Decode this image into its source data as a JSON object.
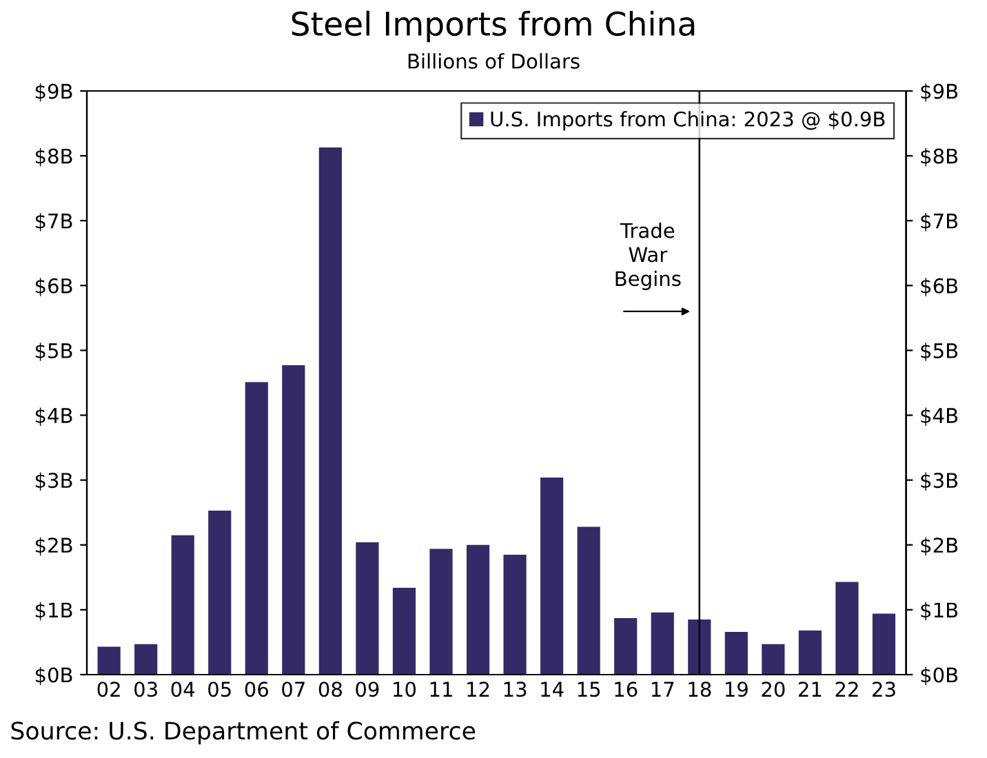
{
  "chart_data": {
    "type": "bar",
    "title": "Steel Imports from China",
    "subtitle": "Billions of Dollars",
    "categories": [
      "02",
      "03",
      "04",
      "05",
      "06",
      "07",
      "08",
      "09",
      "10",
      "11",
      "12",
      "13",
      "14",
      "15",
      "16",
      "17",
      "18",
      "19",
      "20",
      "21",
      "22",
      "23"
    ],
    "series": [
      {
        "name": "U.S. Imports from China: 2023 @ $0.9B",
        "color": "#352a68",
        "values": [
          0.43,
          0.47,
          2.15,
          2.53,
          4.51,
          4.77,
          8.13,
          2.04,
          1.34,
          1.94,
          2.0,
          1.85,
          3.04,
          2.28,
          0.87,
          0.96,
          0.85,
          0.66,
          0.47,
          0.68,
          1.43,
          0.94
        ]
      }
    ],
    "ylim": [
      0,
      9
    ],
    "yticks": [
      {
        "value": 0,
        "label": "$0B"
      },
      {
        "value": 1,
        "label": "$1B"
      },
      {
        "value": 2,
        "label": "$2B"
      },
      {
        "value": 3,
        "label": "$3B"
      },
      {
        "value": 4,
        "label": "$4B"
      },
      {
        "value": 5,
        "label": "$5B"
      },
      {
        "value": 6,
        "label": "$6B"
      },
      {
        "value": 7,
        "label": "$7B"
      },
      {
        "value": 8,
        "label": "$8B"
      },
      {
        "value": 9,
        "label": "$9B"
      }
    ],
    "y2lim": [
      0,
      9
    ],
    "y2ticks": [
      {
        "value": 0,
        "label": "$0B"
      },
      {
        "value": 1,
        "label": "$1B"
      },
      {
        "value": 2,
        "label": "$2B"
      },
      {
        "value": 3,
        "label": "$3B"
      },
      {
        "value": 4,
        "label": "$4B"
      },
      {
        "value": 5,
        "label": "$5B"
      },
      {
        "value": 6,
        "label": "$6B"
      },
      {
        "value": 7,
        "label": "$7B"
      },
      {
        "value": 8,
        "label": "$8B"
      },
      {
        "value": 9,
        "label": "$9B"
      }
    ],
    "ref_lines": [
      {
        "axis": "x",
        "value": "18",
        "label": "Trade\nWar\nBegins",
        "color": "#000000"
      }
    ],
    "annotations": [
      "Source: U.S. Department of Commerce"
    ],
    "legend": "top right",
    "grid": false
  }
}
